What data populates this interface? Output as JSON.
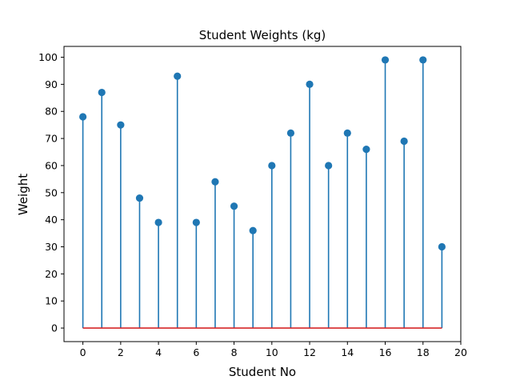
{
  "chart_data": {
    "type": "stem",
    "title": "Student Weights (kg)",
    "xlabel": "Student No",
    "ylabel": "Weight",
    "x": [
      0,
      1,
      2,
      3,
      4,
      5,
      6,
      7,
      8,
      9,
      10,
      11,
      12,
      13,
      14,
      15,
      16,
      17,
      18,
      19
    ],
    "values": [
      78,
      87,
      75,
      48,
      39,
      93,
      39,
      54,
      45,
      36,
      60,
      72,
      90,
      60,
      72,
      66,
      99,
      69,
      99,
      30
    ],
    "xlim": [
      -1,
      20
    ],
    "ylim": [
      -5,
      104
    ],
    "xticks": [
      0,
      2,
      4,
      6,
      8,
      10,
      12,
      14,
      16,
      18,
      20
    ],
    "yticks": [
      0,
      10,
      20,
      30,
      40,
      50,
      60,
      70,
      80,
      90,
      100
    ],
    "baseline": 0,
    "grid": false,
    "colors": {
      "stem": "#1f77b4",
      "marker": "#1f77b4",
      "baseline": "#d62728"
    }
  }
}
